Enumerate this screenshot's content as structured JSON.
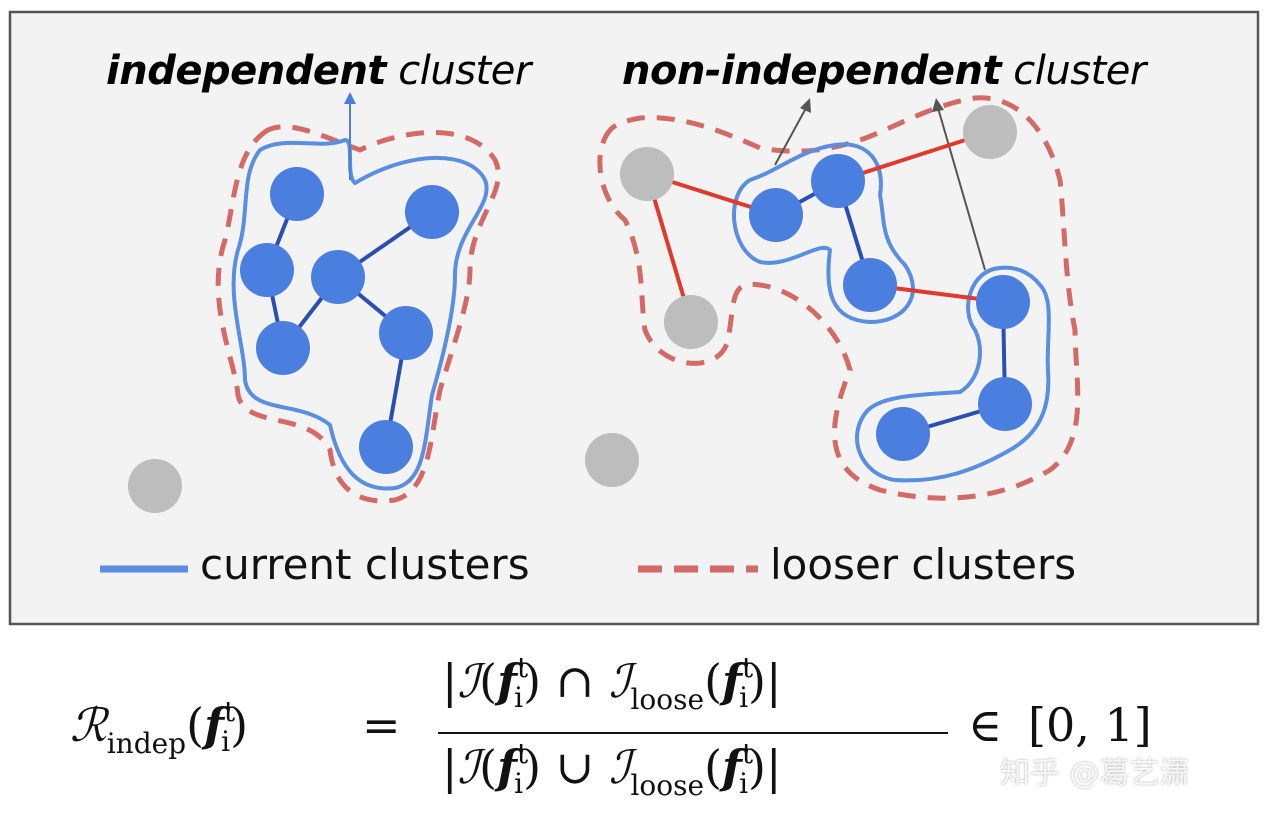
{
  "labels": {
    "independent_bold": "independent",
    "independent_rest": " cluster",
    "nonindependent_bold": "non-independent",
    "nonindependent_rest": " cluster"
  },
  "legend": {
    "current": "current clusters",
    "looser": "looser clusters"
  },
  "colors": {
    "node_blue": "#4a7fe0",
    "node_gray": "#bdbdbd",
    "edge_blue": "#2a4fb0",
    "edge_red": "#e03a2e",
    "cluster_line": "#5a8ee0",
    "looser_line": "#d46a66",
    "panel_bg": "#f3f3f3"
  },
  "formula": {
    "lhs_R": "ℛ",
    "lhs_sub": "indep",
    "f": "f",
    "f_sup": "t",
    "f_sub": "i",
    "eq": "=",
    "I": "ℐ",
    "loose_sub": "loose",
    "cap": "∩",
    "cup": "∪",
    "in": "∈",
    "interval": "[0, 1]"
  },
  "watermark": "知乎 @葛艺潇"
}
